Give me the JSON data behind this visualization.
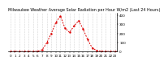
{
  "title": "Milwaukee Weather Average Solar Radiation per Hour W/m2 (Last 24 Hours)",
  "hours": [
    0,
    1,
    2,
    3,
    4,
    5,
    6,
    7,
    8,
    9,
    10,
    11,
    12,
    13,
    14,
    15,
    16,
    17,
    18,
    19,
    20,
    21,
    22,
    23
  ],
  "values": [
    1,
    1,
    1,
    1,
    1,
    1,
    3,
    20,
    95,
    200,
    320,
    390,
    260,
    210,
    280,
    340,
    250,
    130,
    40,
    10,
    3,
    2,
    1,
    1
  ],
  "line_color": "#dd0000",
  "bg_color": "#ffffff",
  "grid_color": "#999999",
  "ylim": [
    0,
    430
  ],
  "yticks": [
    0,
    100,
    200,
    300,
    400
  ],
  "tick_label_color": "#000000",
  "title_fontsize": 3.5,
  "tick_fontsize": 3.0
}
